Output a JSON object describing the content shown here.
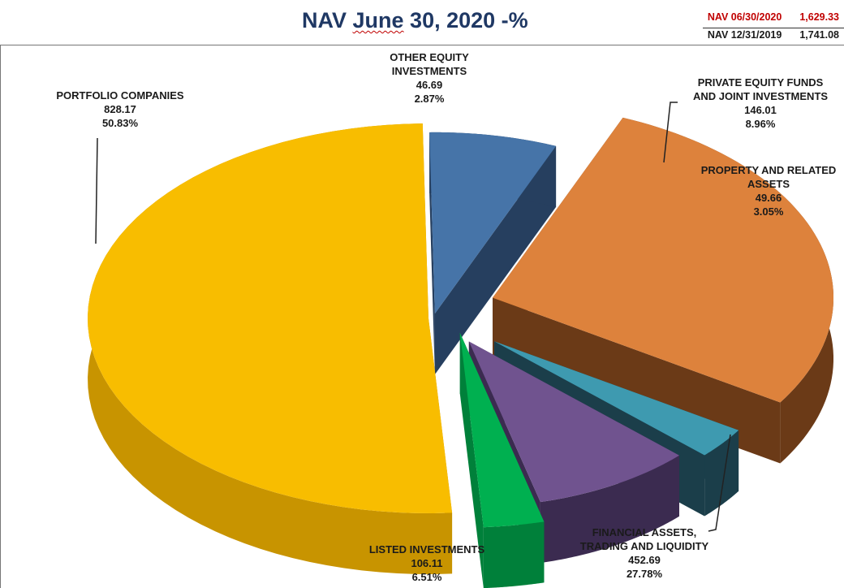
{
  "title": {
    "main": "NAV ",
    "underlined": "June",
    "rest": " 30, 2020 -%"
  },
  "nav_summary": {
    "current": {
      "label": "NAV 06/30/2020",
      "value": "1,629.33"
    },
    "prior": {
      "label": "NAV 12/31/2019",
      "value": "1,741.08"
    }
  },
  "chart_data": {
    "type": "pie",
    "title": "NAV June 30, 2020 -%",
    "slices": [
      {
        "key": "portfolio",
        "label": [
          "PORTFOLIO COMPANIES"
        ],
        "value": 828.17,
        "value_text": "828.17",
        "pct_text": "50.83%",
        "color": "#f8bd00",
        "side_color": "#c89400"
      },
      {
        "key": "other",
        "label": [
          "OTHER EQUITY",
          "INVESTMENTS"
        ],
        "value": 46.69,
        "value_text": "46.69",
        "pct_text": "2.87%",
        "color": "#00b050",
        "side_color": "#00803a"
      },
      {
        "key": "pe",
        "label": [
          "PRIVATE EQUITY FUNDS",
          "AND JOINT INVESTMENTS"
        ],
        "value": 146.01,
        "value_text": "146.01",
        "pct_text": "8.96%",
        "color": "#70538f",
        "side_color": "#3b2b50"
      },
      {
        "key": "property",
        "label": [
          "PROPERTY AND RELATED",
          "ASSETS"
        ],
        "value": 49.66,
        "value_text": "49.66",
        "pct_text": "3.05%",
        "color": "#3e9ab0",
        "side_color": "#1b3e4a"
      },
      {
        "key": "financial",
        "label": [
          "FINANCIAL ASSETS,",
          "TRADING AND LIQUIDITY"
        ],
        "value": 452.69,
        "value_text": "452.69",
        "pct_text": "27.78%",
        "color": "#dd823c",
        "side_color": "#6b3a17"
      },
      {
        "key": "listed",
        "label": [
          "LISTED INVESTMENTS"
        ],
        "value": 106.11,
        "value_text": "106.11",
        "pct_text": "6.51%",
        "color": "#4674a8",
        "side_color": "#263f5f"
      }
    ]
  }
}
